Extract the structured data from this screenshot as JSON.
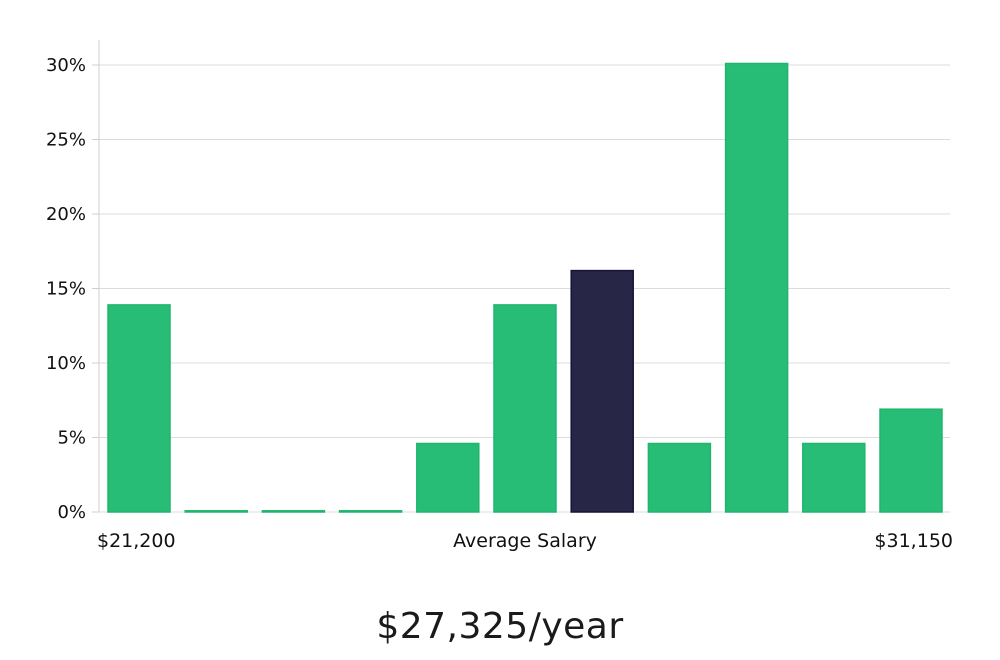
{
  "chart_data": {
    "type": "bar",
    "categories": [
      "1",
      "2",
      "3",
      "4",
      "5",
      "6",
      "7",
      "8",
      "9",
      "10",
      "11"
    ],
    "values": [
      13.9,
      0,
      0,
      0,
      4.6,
      13.9,
      16.2,
      4.6,
      30.1,
      4.6,
      6.9
    ],
    "highlight_index": 6,
    "ylim": [
      0,
      31.5
    ],
    "yticks": [
      0,
      5,
      10,
      15,
      20,
      25,
      30
    ],
    "ytick_suffix": "%",
    "grid": true,
    "x_labels": {
      "left": "$21,200",
      "center": "Average Salary",
      "right": "$31,150"
    },
    "colors": {
      "bar": "#28bd77",
      "highlight": "#282646",
      "grid": "#dcdcdc"
    }
  },
  "salary_display": "$27,325/year"
}
